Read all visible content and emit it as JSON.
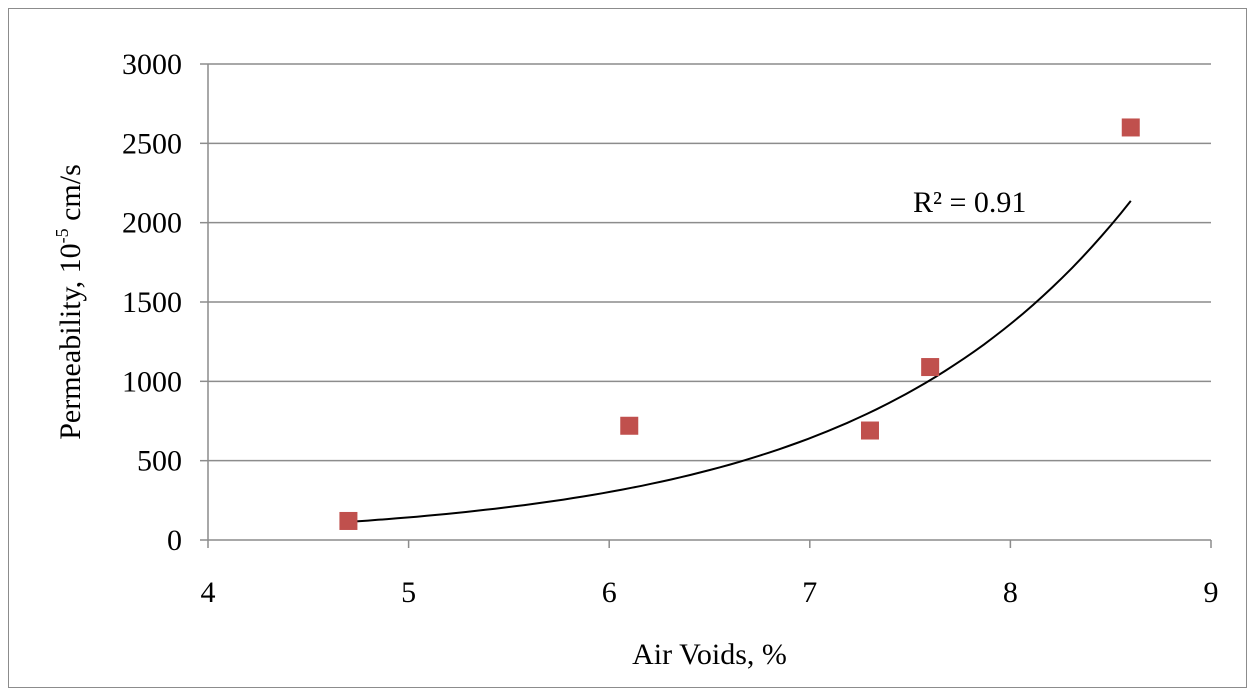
{
  "chart_data": {
    "type": "scatter",
    "xlabel": "Air Voids, %",
    "ylabel_main": "Permeability, 10",
    "ylabel_sup": "-5",
    "ylabel_unit": " cm/s",
    "xlim": [
      4,
      9
    ],
    "ylim": [
      0,
      3000
    ],
    "x_ticks": [
      4,
      5,
      6,
      7,
      8,
      9
    ],
    "y_ticks": [
      0,
      500,
      1000,
      1500,
      2000,
      2500,
      3000
    ],
    "grid": "horizontal",
    "marker_color": "#c0504d",
    "trendline_color": "#000000",
    "series": [
      {
        "x": [
          4.7,
          6.1,
          7.3,
          7.6,
          8.6
        ],
        "y": [
          120,
          720,
          690,
          1090,
          2600
        ]
      }
    ],
    "trendline": {
      "type": "exponential",
      "a": 3.32,
      "b": 0.752,
      "x_range": [
        4.7,
        8.6
      ],
      "r2_label": "R² = 0.91"
    }
  }
}
